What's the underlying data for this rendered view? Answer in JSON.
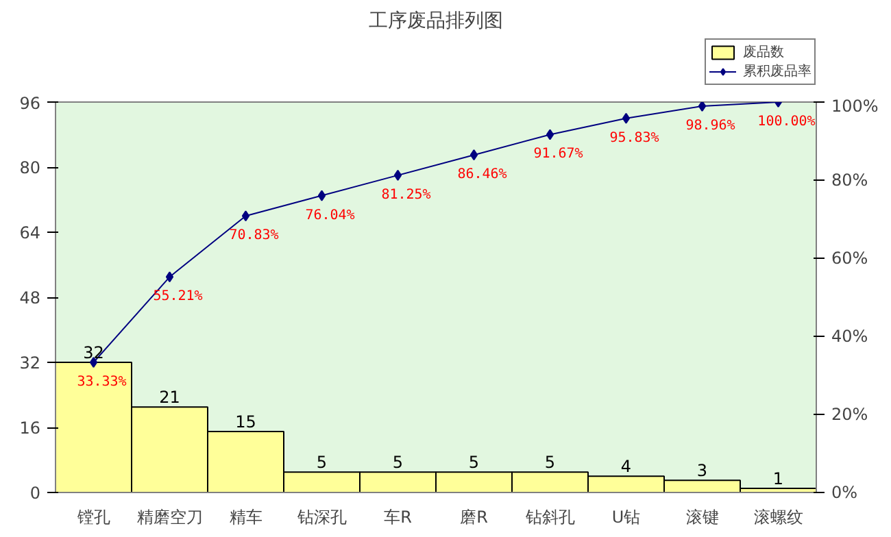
{
  "chart_data": {
    "type": "bar",
    "title": "工序废品排列图",
    "categories": [
      "镗孔",
      "精磨空刀",
      "精车",
      "钻深孔",
      "车R",
      "磨R",
      "钻斜孔",
      "U钻",
      "滚键",
      "滚螺纹"
    ],
    "series": [
      {
        "name": "废品数",
        "color": "#ffff99",
        "values": [
          32,
          21,
          15,
          5,
          5,
          5,
          5,
          4,
          3,
          1
        ],
        "value_labels": [
          "32",
          "21",
          "15",
          "5",
          "5",
          "5",
          "5",
          "4",
          "3",
          "1"
        ]
      },
      {
        "name": "累积废品率",
        "type": "line",
        "axis": "y2",
        "color": "#000080",
        "marker": "diamond",
        "values": [
          33.33,
          55.21,
          70.83,
          76.04,
          81.25,
          86.46,
          91.67,
          95.83,
          98.96,
          100.0
        ],
        "value_labels": [
          "33.33%",
          "55.21%",
          "70.83%",
          "76.04%",
          "81.25%",
          "86.46%",
          "91.67%",
          "95.83%",
          "98.96%",
          "100.00%"
        ]
      }
    ],
    "ylim": [
      0,
      96
    ],
    "yticks": [
      0,
      16,
      32,
      48,
      64,
      80,
      96
    ],
    "y2lim": [
      0,
      100
    ],
    "y2ticks": [
      {
        "value": 0,
        "label": "0%"
      },
      {
        "value": 20,
        "label": "20%"
      },
      {
        "value": 40,
        "label": "40%"
      },
      {
        "value": 60,
        "label": "60%"
      },
      {
        "value": 80,
        "label": "80%"
      },
      {
        "value": 100,
        "label": "100%"
      }
    ],
    "grid": false,
    "legend": "top right"
  }
}
